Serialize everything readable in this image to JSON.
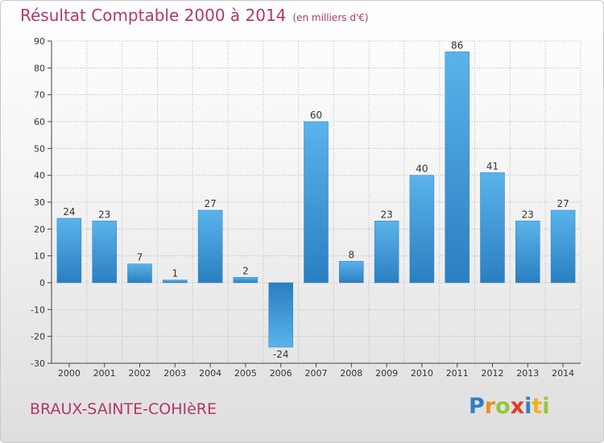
{
  "title": {
    "main": "Résultat Comptable 2000 à 2014",
    "unit": "(en milliers d'€)"
  },
  "place_name": "BRAUX-SAINTE-COHIèRE",
  "logo": {
    "letters": [
      "P",
      "r",
      "o",
      "x",
      "i",
      "t",
      "i"
    ],
    "colors": [
      "#2f7fc7",
      "#f28c1c",
      "#9ac43c",
      "#e23b2a",
      "#2f7fc7",
      "#f2b01c",
      "#9ac43c"
    ]
  },
  "colors": {
    "bar_light": "#5ab3ea",
    "bar_dark": "#2a7fc1",
    "accent": "#b0386a"
  },
  "chart_data": {
    "type": "bar",
    "title": "Résultat Comptable 2000 à 2014",
    "subtitle": "(en milliers d'€)",
    "xlabel": "",
    "ylabel": "",
    "categories": [
      "2000",
      "2001",
      "2002",
      "2003",
      "2004",
      "2005",
      "2006",
      "2007",
      "2008",
      "2009",
      "2010",
      "2011",
      "2012",
      "2013",
      "2014"
    ],
    "values": [
      24,
      23,
      7,
      1,
      27,
      2,
      -24,
      60,
      8,
      23,
      40,
      86,
      41,
      23,
      27
    ],
    "ylim": [
      -30,
      90
    ],
    "yticks": [
      -30,
      -20,
      -10,
      0,
      10,
      20,
      30,
      40,
      50,
      60,
      70,
      80,
      90
    ],
    "grid": "horizontal dotted",
    "legend": "none"
  }
}
